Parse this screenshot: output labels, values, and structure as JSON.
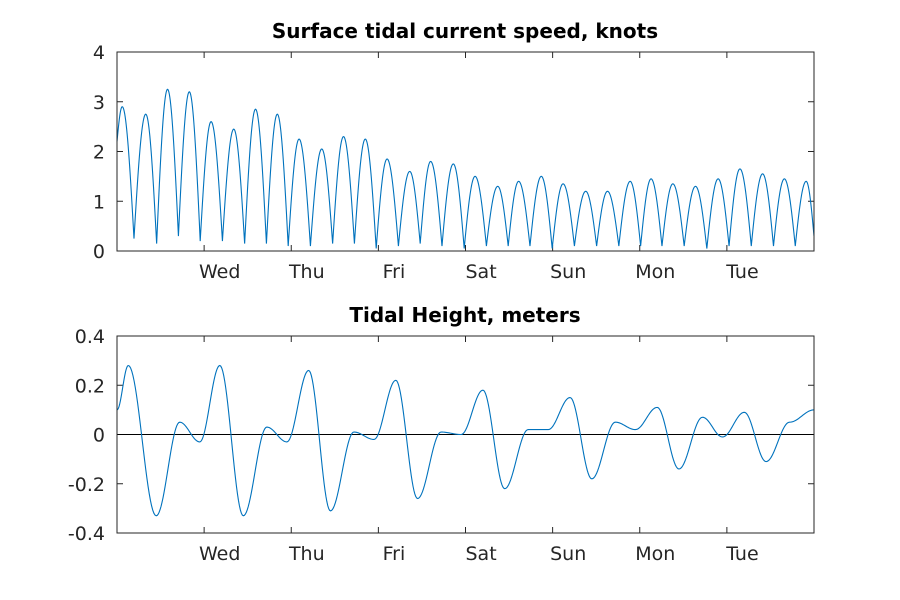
{
  "chart_data": [
    {
      "type": "line",
      "title": "Surface tidal current speed, knots",
      "xlabel": "",
      "ylabel": "",
      "x_categories": [
        "Wed",
        "Thu",
        "Fri",
        "Sat",
        "Sun",
        "Mon",
        "Tue"
      ],
      "xlim_days": [
        0,
        8
      ],
      "ylim": [
        0,
        4
      ],
      "y_ticks": [
        0,
        1,
        2,
        3,
        4
      ],
      "y_tick_labels": [
        "0",
        "1",
        "2",
        "3",
        "4"
      ],
      "grid": false,
      "line_color": "#0072BD",
      "series": [
        {
          "name": "",
          "peak_days": [
            0.06,
            0.33,
            0.58,
            0.83,
            1.08,
            1.34,
            1.59,
            1.84,
            2.09,
            2.35,
            2.6,
            2.85,
            3.1,
            3.36,
            3.6,
            3.86,
            4.11,
            4.37,
            4.61,
            4.87,
            5.12,
            5.38,
            5.63,
            5.89,
            6.13,
            6.38,
            6.64,
            6.9,
            7.15,
            7.41,
            7.66,
            7.91
          ],
          "peak_values": [
            2.9,
            2.75,
            3.25,
            3.2,
            2.6,
            2.45,
            2.85,
            2.75,
            2.25,
            2.05,
            2.3,
            2.25,
            1.85,
            1.6,
            1.8,
            1.75,
            1.5,
            1.3,
            1.4,
            1.5,
            1.35,
            1.2,
            1.2,
            1.4,
            1.45,
            1.35,
            1.3,
            1.45,
            1.65,
            1.55,
            1.45,
            1.4
          ],
          "trough_values": [
            0.25,
            0.15,
            0.3,
            0.2,
            0.2,
            0.15,
            0.15,
            0.1,
            0.1,
            0.15,
            0.15,
            0.05,
            0.1,
            0.15,
            0.1,
            0.05,
            0.1,
            0.1,
            0.1,
            0.05,
            0.1,
            0.1,
            0.1,
            0.1,
            0.1,
            0.1,
            0.05,
            0.1,
            0.1,
            0.1,
            0.1,
            0.3
          ],
          "start_value": 2.2,
          "end_value": 0.3
        }
      ]
    },
    {
      "type": "line",
      "title": "Tidal Height, meters",
      "xlabel": "",
      "ylabel": "",
      "x_categories": [
        "Wed",
        "Thu",
        "Fri",
        "Sat",
        "Sun",
        "Mon",
        "Tue"
      ],
      "xlim_days": [
        0,
        8
      ],
      "ylim": [
        -0.4,
        0.4
      ],
      "y_ticks": [
        -0.4,
        -0.2,
        0,
        0.2,
        0.4
      ],
      "y_tick_labels": [
        "-0.4",
        "-0.2",
        "0",
        "0.2",
        "0.4"
      ],
      "grid": false,
      "zero_line": true,
      "line_color": "#0072BD",
      "series": [
        {
          "name": "",
          "x_days": [
            0.0,
            0.13,
            0.45,
            0.72,
            0.95,
            1.18,
            1.45,
            1.72,
            1.95,
            2.2,
            2.45,
            2.72,
            2.95,
            3.2,
            3.45,
            3.72,
            3.95,
            4.2,
            4.45,
            4.72,
            4.95,
            5.2,
            5.45,
            5.72,
            5.95,
            6.2,
            6.45,
            6.72,
            6.95,
            7.2,
            7.45,
            7.72,
            8.0
          ],
          "values": [
            0.1,
            0.28,
            -0.33,
            0.05,
            -0.03,
            0.28,
            -0.33,
            0.03,
            -0.03,
            0.26,
            -0.31,
            0.01,
            -0.02,
            0.22,
            -0.26,
            0.01,
            0.0,
            0.18,
            -0.22,
            0.02,
            0.02,
            0.15,
            -0.18,
            0.05,
            0.02,
            0.11,
            -0.14,
            0.07,
            -0.01,
            0.09,
            -0.11,
            0.05,
            0.1
          ]
        }
      ]
    }
  ]
}
